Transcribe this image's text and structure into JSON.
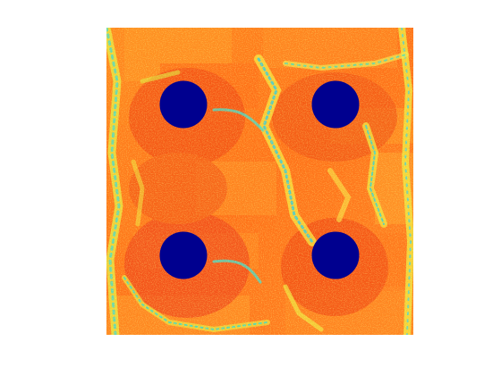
{
  "figure": {
    "background_color": "#ffffff",
    "colormap": "jet",
    "palette": {
      "deep_blue": "#00008f",
      "cyan": "#30e0e0",
      "light_cyan": "#7ff0b0",
      "yellow_green": "#d8f040",
      "yellow": "#ffff30",
      "orange": "#ff9a20",
      "orange_red": "#ff7418",
      "red": "#f23a10"
    },
    "disks": [
      {
        "label": "upper-left-disk"
      },
      {
        "label": "upper-right-disk"
      },
      {
        "label": "lower-left-disk"
      },
      {
        "label": "lower-right-disk"
      }
    ]
  }
}
